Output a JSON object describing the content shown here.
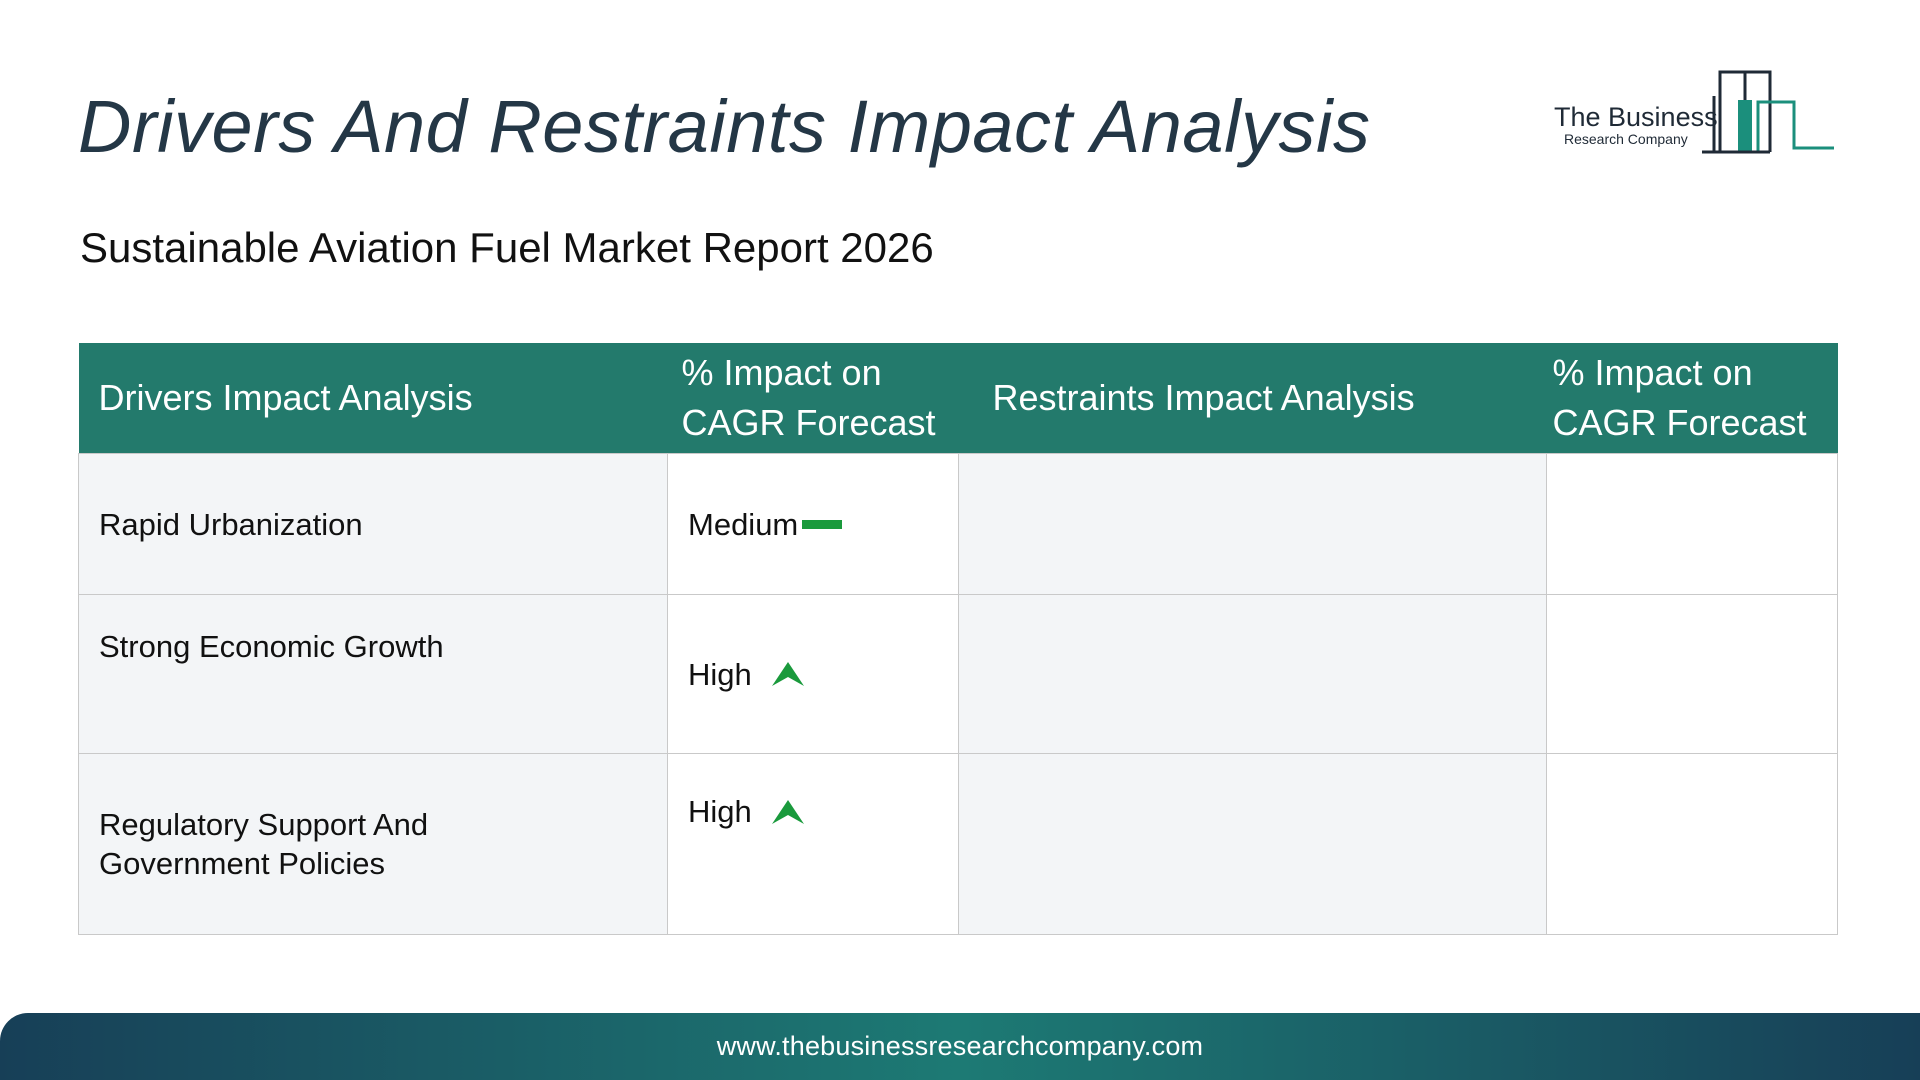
{
  "header": {
    "title": "Drivers And Restraints Impact Analysis",
    "subtitle": "Sustainable Aviation Fuel Market Report 2026"
  },
  "logo": {
    "line1": "The Business",
    "line2": "Research Company",
    "color_primary": "#1f2a36",
    "color_accent": "#1b8f7c"
  },
  "table": {
    "headers": {
      "drivers": "Drivers Impact Analysis",
      "drivers_impact": "% Impact on CAGR Forecast",
      "restraints": "Restraints Impact Analysis",
      "restraints_impact": "% Impact on CAGR Forecast"
    },
    "rows": [
      {
        "driver": "Rapid Urbanization",
        "impact": "Medium",
        "impact_icon": "dash-icon",
        "restraint": "",
        "restraint_impact": ""
      },
      {
        "driver": "Strong Economic Growth",
        "impact": "High",
        "impact_icon": "arrow-up-icon",
        "restraint": "",
        "restraint_impact": ""
      },
      {
        "driver": "Regulatory Support And Government Policies",
        "impact": "High",
        "impact_icon": "arrow-up-icon",
        "restraint": "",
        "restraint_impact": ""
      }
    ]
  },
  "colors": {
    "header_bg": "#237a6c",
    "impact_text": "#1a9a3c",
    "title_text": "#243746"
  },
  "footer": {
    "url": "www.thebusinessresearchcompany.com"
  }
}
